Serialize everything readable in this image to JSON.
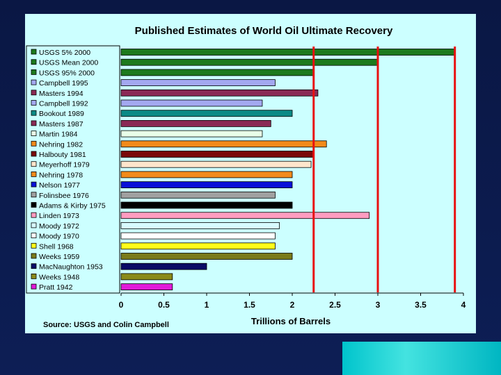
{
  "colors": {
    "background": "#0b1a4a",
    "panel": "#ccffff",
    "reference_line": "#e81010",
    "accent": "#22d6d6"
  },
  "source_text": "Source:  USGS and Colin Campbell",
  "chart_data": {
    "type": "bar",
    "orientation": "horizontal",
    "title": "Published Estimates of World Oil Ultimate Recovery",
    "xlabel": "Trillions of Barrels",
    "ylabel": "",
    "xlim": [
      0,
      4
    ],
    "x_ticks": [
      "0",
      "0.5",
      "1",
      "1.5",
      "2",
      "2.5",
      "3",
      "3.5",
      "4"
    ],
    "grid": false,
    "legend": "left",
    "categories": [
      "USGS 5% 2000",
      "USGS Mean 2000",
      "USGS 95% 2000",
      "Campbell 1995",
      "Masters 1994",
      "Campbell 1992",
      "Bookout 1989",
      "Masters 1987",
      "Martin 1984",
      "Nehring 1982",
      "Halbouty 1981",
      "Meyerhoff 1979",
      "Nehring 1978",
      "Nelson 1977",
      "Folinsbee 1976",
      "Adams & Kirby 1975",
      "Linden 1973",
      "Moody 1972",
      "Moody 1970",
      "Shell 1968",
      "Weeks 1959",
      "MacNaughton 1953",
      "Weeks 1948",
      "Pratt 1942"
    ],
    "values": [
      3.9,
      3.0,
      2.25,
      1.8,
      2.3,
      1.65,
      2.0,
      1.75,
      1.65,
      2.4,
      2.25,
      2.22,
      2.0,
      2.0,
      1.8,
      2.0,
      2.9,
      1.85,
      1.8,
      1.8,
      2.0,
      1.0,
      0.6,
      0.6
    ],
    "bar_colors": [
      "#1d7a1d",
      "#1d7a1d",
      "#1d7a1d",
      "#a3a8f0",
      "#8a2a55",
      "#a3a8f0",
      "#0a8a85",
      "#8a2a55",
      "#e8ffe8",
      "#f28a1a",
      "#7a0a0a",
      "#ffe6cc",
      "#f28a1a",
      "#0a10d8",
      "#a0a0a0",
      "#000000",
      "#ff9cc0",
      "#d8fbff",
      "#ffffff",
      "#ffff1a",
      "#7a7a1a",
      "#0a0a66",
      "#8a8a1a",
      "#e01ad8"
    ],
    "reference_lines": [
      2.25,
      3.0,
      3.9
    ]
  }
}
